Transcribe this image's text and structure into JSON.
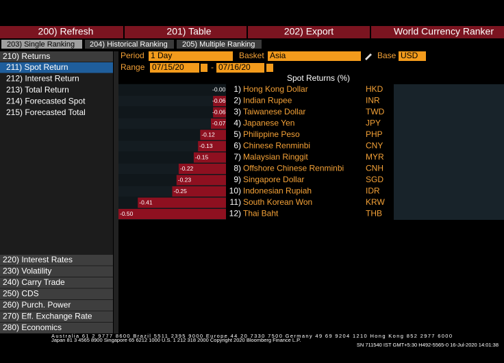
{
  "toolbar": [
    "200) Refresh",
    "201) Table",
    "202) Export",
    "World Currency Ranker"
  ],
  "tabs": [
    "203) Single Ranking",
    "204) Historical Ranking",
    "205) Multiple Ranking"
  ],
  "sidebar": {
    "header": "210) Returns",
    "items": [
      "211) Spot Return",
      "212) Interest Return",
      "213) Total Return",
      "214) Forecasted Spot",
      "215) Forecasted Total"
    ],
    "more": [
      "220) Interest Rates",
      "230) Volatility",
      "240) Carry Trade",
      "250) CDS",
      "260) Purch. Power",
      "270) Eff. Exchange Rate",
      "280) Economics"
    ]
  },
  "controls": {
    "period_label": "Period",
    "period": "1 Day",
    "basket_label": "Basket",
    "basket": "Asia",
    "base_label": "Base",
    "base": "USD",
    "range_label": "Range",
    "range_start": "07/15/20",
    "range_sep": "-",
    "range_end": "07/16/20"
  },
  "chart_data": {
    "type": "bar",
    "orientation": "horizontal",
    "title": "Spot Returns (%)",
    "ranks": [
      "1)",
      "2)",
      "3)",
      "4)",
      "5)",
      "6)",
      "7)",
      "8)",
      "9)",
      "10)",
      "11)",
      "12)"
    ],
    "categories": [
      "Hong Kong Dollar",
      "Indian Rupee",
      "Taiwanese Dollar",
      "Japanese Yen",
      "Philippine Peso",
      "Chinese Renminbi",
      "Malaysian Ringgit",
      "Offshore Chinese Renminbi",
      "Singapore Dollar",
      "Indonesian Rupiah",
      "South Korean Won",
      "Thai Baht"
    ],
    "codes": [
      "HKD",
      "INR",
      "TWD",
      "JPY",
      "PHP",
      "CNY",
      "MYR",
      "CNH",
      "SGD",
      "IDR",
      "KRW",
      "THB"
    ],
    "values": [
      0,
      -0.06,
      -0.06,
      -0.07,
      -0.12,
      -0.13,
      -0.15,
      -0.22,
      -0.23,
      -0.25,
      -0.41,
      -0.5
    ],
    "value_labels": [
      "-0.00",
      "-0.06",
      "-0.06",
      "-0.07",
      "-0.12",
      "-0.13",
      "-0.15",
      "-0.22",
      "-0.23",
      "-0.25",
      "-0.41",
      "-0.50"
    ],
    "xlim": [
      -0.5,
      0
    ],
    "color": "#8e1020"
  },
  "footer": [
    "Australia 61 2 9777 8600 Brazil 5511 2395 9000 Europe 44 20 7330 7500 Germany 49 69 9204 1210 Hong Kong 852 2977 6000",
    "Japan 81 3 4565 8900      Singapore 65 6212 1000      U.S. 1 212 318 2000      Copyright 2020 Bloomberg Finance L.P.",
    "SN 711540 IST  GMT+5:30 H492-5565-0 16-Jul-2020 14:01:38"
  ]
}
